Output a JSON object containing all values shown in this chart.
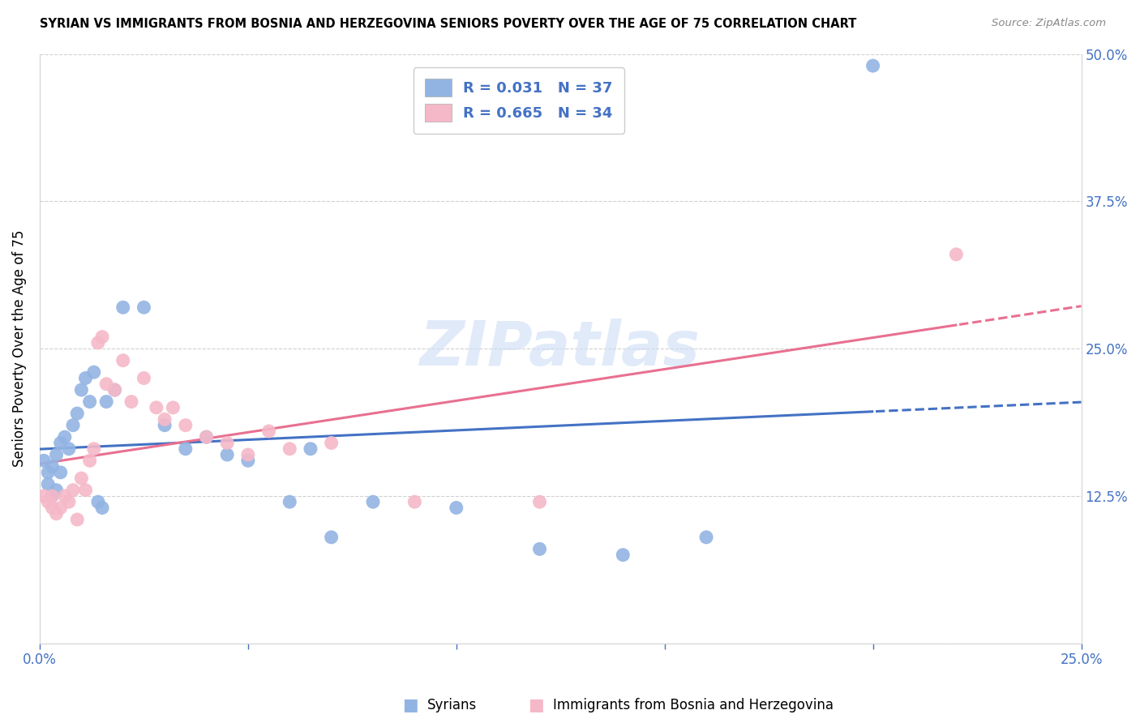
{
  "title": "SYRIAN VS IMMIGRANTS FROM BOSNIA AND HERZEGOVINA SENIORS POVERTY OVER THE AGE OF 75 CORRELATION CHART",
  "source": "Source: ZipAtlas.com",
  "ylabel": "Seniors Poverty Over the Age of 75",
  "xlim": [
    0.0,
    0.25
  ],
  "ylim": [
    0.0,
    0.5
  ],
  "xtick_pos": [
    0.0,
    0.05,
    0.1,
    0.15,
    0.2,
    0.25
  ],
  "ytick_pos": [
    0.0,
    0.125,
    0.25,
    0.375,
    0.5
  ],
  "watermark": "ZIPatlas",
  "blue_scatter_color": "#92b4e3",
  "pink_scatter_color": "#f5b8c8",
  "blue_line_color": "#4472c4",
  "pink_line_color": "#e87090",
  "axis_label_color": "#4472c4",
  "legend_R_blue": "0.031",
  "legend_N_blue": "37",
  "legend_R_pink": "0.665",
  "legend_N_pink": "34",
  "syr_x": [
    0.001,
    0.002,
    0.002,
    0.003,
    0.003,
    0.004,
    0.004,
    0.005,
    0.005,
    0.006,
    0.007,
    0.008,
    0.009,
    0.01,
    0.011,
    0.012,
    0.013,
    0.014,
    0.015,
    0.016,
    0.018,
    0.02,
    0.025,
    0.03,
    0.035,
    0.04,
    0.045,
    0.05,
    0.06,
    0.065,
    0.07,
    0.08,
    0.1,
    0.12,
    0.14,
    0.16,
    0.2
  ],
  "syr_y": [
    0.155,
    0.145,
    0.135,
    0.15,
    0.125,
    0.16,
    0.13,
    0.17,
    0.145,
    0.175,
    0.165,
    0.185,
    0.195,
    0.215,
    0.225,
    0.205,
    0.23,
    0.12,
    0.115,
    0.205,
    0.215,
    0.285,
    0.285,
    0.185,
    0.165,
    0.175,
    0.16,
    0.155,
    0.12,
    0.165,
    0.09,
    0.12,
    0.115,
    0.08,
    0.075,
    0.09,
    0.49
  ],
  "bos_x": [
    0.001,
    0.002,
    0.003,
    0.003,
    0.004,
    0.005,
    0.006,
    0.007,
    0.008,
    0.009,
    0.01,
    0.011,
    0.012,
    0.013,
    0.014,
    0.015,
    0.016,
    0.018,
    0.02,
    0.022,
    0.025,
    0.028,
    0.03,
    0.032,
    0.035,
    0.04,
    0.045,
    0.05,
    0.055,
    0.06,
    0.07,
    0.09,
    0.12,
    0.22
  ],
  "bos_y": [
    0.125,
    0.12,
    0.125,
    0.115,
    0.11,
    0.115,
    0.125,
    0.12,
    0.13,
    0.105,
    0.14,
    0.13,
    0.155,
    0.165,
    0.255,
    0.26,
    0.22,
    0.215,
    0.24,
    0.205,
    0.225,
    0.2,
    0.19,
    0.2,
    0.185,
    0.175,
    0.17,
    0.16,
    0.18,
    0.165,
    0.17,
    0.12,
    0.12,
    0.33
  ]
}
